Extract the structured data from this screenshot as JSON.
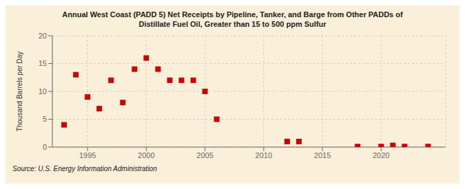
{
  "chart_data": {
    "type": "scatter",
    "title": "Annual West Coast (PADD 5) Net Receipts by Pipeline, Tanker, and Barge from Other PADDs of\nDistillate Fuel Oil, Greater than 15 to 500 ppm Sulfur",
    "ylabel": "Thousand Barrels per Day",
    "annotations": [
      "Source: U.S. Energy Information Administration"
    ],
    "color": "#cc0000",
    "marker": "square",
    "grid": true,
    "xlim": [
      1992,
      2025.5
    ],
    "ylim": [
      0,
      20
    ],
    "xticks": [
      1995,
      2000,
      2005,
      2010,
      2015,
      2020
    ],
    "yticks": [
      0,
      5,
      10,
      15,
      20
    ],
    "x": [
      1993,
      1994,
      1995,
      1996,
      1997,
      1998,
      1999,
      2000,
      2001,
      2002,
      2003,
      2004,
      2005,
      2006,
      2012,
      2013,
      2018,
      2020,
      2021,
      2022,
      2024
    ],
    "values": [
      4.0,
      13.0,
      9.0,
      6.9,
      12.0,
      8.0,
      14.0,
      16.0,
      14.0,
      12.0,
      12.0,
      12.0,
      10.0,
      5.0,
      1.0,
      1.0,
      0.1,
      0.1,
      0.3,
      0.1,
      0.1
    ]
  }
}
